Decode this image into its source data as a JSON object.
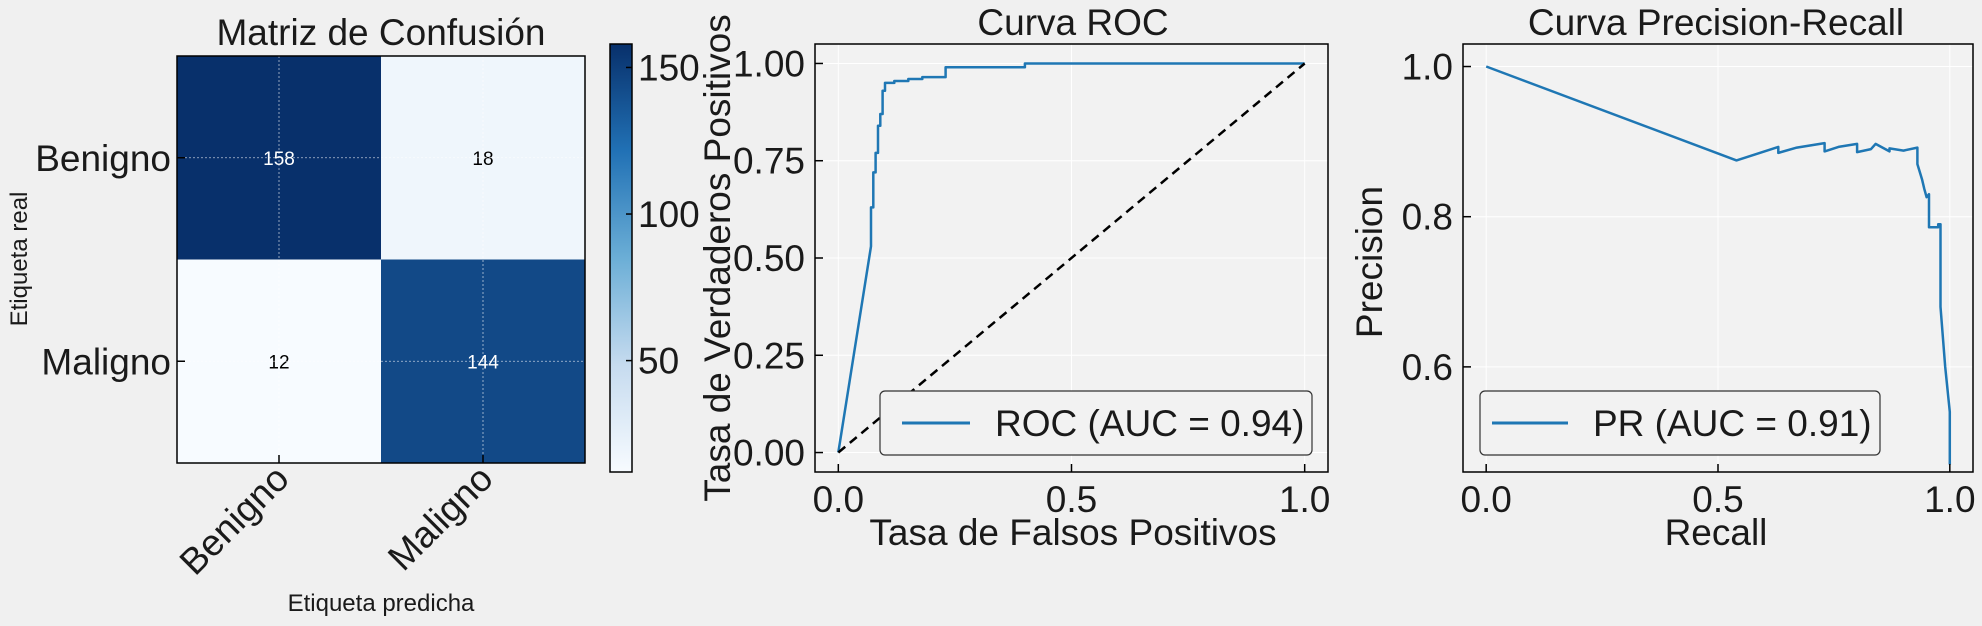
{
  "chart_data": [
    {
      "type": "heatmap",
      "title": "Matriz de Confusión",
      "xlabel": "Etiqueta predicha",
      "ylabel": "Etiqueta real",
      "row_labels": [
        "Benigno",
        "Maligno"
      ],
      "col_labels": [
        "Benigno",
        "Maligno"
      ],
      "matrix": [
        [
          158,
          18
        ],
        [
          12,
          144
        ]
      ],
      "cell_labels": [
        [
          "158",
          "18"
        ],
        [
          "12",
          "144"
        ]
      ],
      "colorbar": {
        "cmap": "Blues",
        "range": [
          12,
          158
        ],
        "ticks": [
          50,
          100,
          150
        ],
        "tick_labels": [
          "50",
          "100",
          "150"
        ]
      }
    },
    {
      "type": "line",
      "title": "Curva ROC",
      "xlabel": "Tasa de Falsos Positivos",
      "ylabel": "Tasa de Verdaderos Positivos",
      "xlim": [
        -0.05,
        1.05
      ],
      "ylim": [
        -0.05,
        1.05
      ],
      "xticks": [
        0.0,
        0.5,
        1.0
      ],
      "xtick_labels": [
        "0.0",
        "0.5",
        "1.0"
      ],
      "yticks": [
        0.0,
        0.25,
        0.5,
        0.75,
        1.0
      ],
      "ytick_labels": [
        "0.00",
        "0.25",
        "0.50",
        "0.75",
        "1.00"
      ],
      "grid": true,
      "legend_position": "lower-right",
      "series": [
        {
          "name": "ROC (AUC = 0.94)",
          "color": "#1f77b4",
          "x": [
            0.0,
            0.07,
            0.07,
            0.075,
            0.075,
            0.08,
            0.08,
            0.085,
            0.085,
            0.09,
            0.09,
            0.095,
            0.095,
            0.1,
            0.1,
            0.12,
            0.12,
            0.15,
            0.15,
            0.18,
            0.18,
            0.23,
            0.23,
            0.4,
            0.4,
            1.0
          ],
          "y": [
            0.0,
            0.53,
            0.63,
            0.63,
            0.72,
            0.72,
            0.77,
            0.77,
            0.84,
            0.84,
            0.87,
            0.87,
            0.93,
            0.93,
            0.95,
            0.95,
            0.955,
            0.955,
            0.96,
            0.96,
            0.965,
            0.965,
            0.99,
            0.99,
            1.0,
            1.0
          ]
        },
        {
          "name": "",
          "color": "#000000",
          "dashed": true,
          "x": [
            0.0,
            1.0
          ],
          "y": [
            0.0,
            1.0
          ]
        }
      ]
    },
    {
      "type": "line",
      "title": "Curva Precision-Recall",
      "xlabel": "Recall",
      "ylabel": "Precision",
      "xlim": [
        -0.05,
        1.05
      ],
      "ylim": [
        0.46,
        1.03
      ],
      "xticks": [
        0.0,
        0.5,
        1.0
      ],
      "xtick_labels": [
        "0.0",
        "0.5",
        "1.0"
      ],
      "yticks": [
        0.6,
        0.8,
        1.0
      ],
      "ytick_labels": [
        "0.6",
        "0.8",
        "1.0"
      ],
      "grid": true,
      "legend_position": "lower-left",
      "series": [
        {
          "name": "PR (AUC = 0.91)",
          "color": "#1f77b4",
          "x": [
            0.0,
            0.54,
            0.63,
            0.63,
            0.67,
            0.73,
            0.73,
            0.76,
            0.8,
            0.8,
            0.83,
            0.84,
            0.87,
            0.87,
            0.9,
            0.93,
            0.93,
            0.94,
            0.945,
            0.95,
            0.955,
            0.955,
            0.975,
            0.975,
            0.98,
            0.98,
            0.99,
            1.0,
            1.0
          ],
          "y": [
            1.0,
            0.875,
            0.893,
            0.885,
            0.892,
            0.898,
            0.887,
            0.893,
            0.897,
            0.886,
            0.89,
            0.897,
            0.887,
            0.891,
            0.888,
            0.892,
            0.87,
            0.85,
            0.837,
            0.826,
            0.83,
            0.786,
            0.786,
            0.79,
            0.79,
            0.68,
            0.6,
            0.54,
            0.47
          ]
        }
      ]
    }
  ]
}
